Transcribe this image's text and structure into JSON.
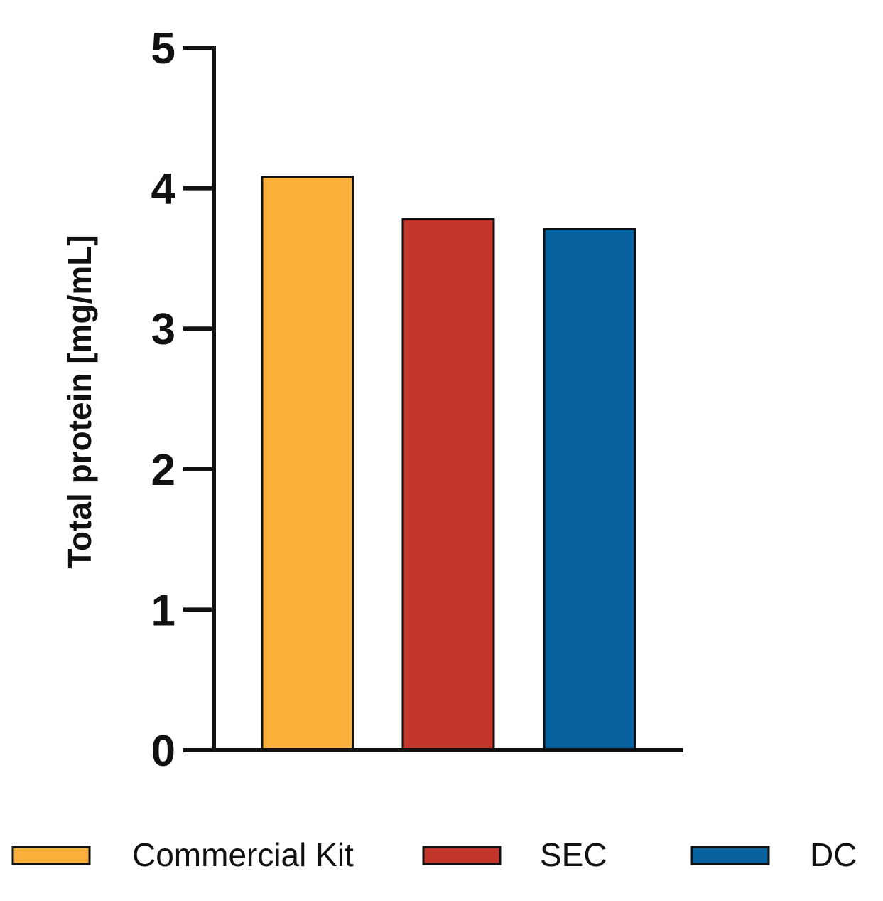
{
  "chart_data": {
    "type": "bar",
    "categories": [
      "Commercial Kit",
      "SEC",
      "DC"
    ],
    "values": [
      4.08,
      3.78,
      3.71
    ],
    "colors": [
      "#FBB03B",
      "#C1352A",
      "#0862A0"
    ],
    "title": "",
    "xlabel": "",
    "ylabel": "Total protein [mg/mL]",
    "ylim": [
      0,
      5
    ],
    "yticks": [
      "0",
      "1",
      "2",
      "3",
      "4",
      "5"
    ],
    "grid": false,
    "legend": {
      "placement": "bottom",
      "entries": [
        "Commercial Kit",
        "SEC",
        "DC"
      ]
    }
  }
}
